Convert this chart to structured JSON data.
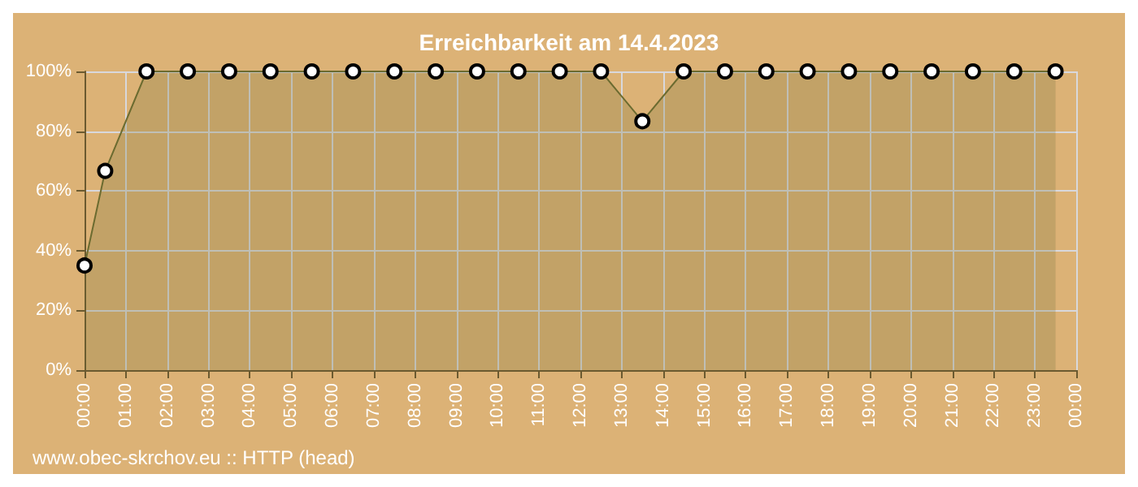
{
  "chart_data": {
    "type": "area",
    "title": "Erreichbarkeit am 14.4.2023",
    "x": [
      0,
      0.5,
      1.5,
      2.5,
      3.5,
      4.5,
      5.5,
      6.5,
      7.5,
      8.5,
      9.5,
      10.5,
      11.5,
      12.5,
      13.5,
      14.5,
      15.5,
      16.5,
      17.5,
      18.5,
      19.5,
      20.5,
      21.5,
      22.5,
      23.5
    ],
    "values": [
      35,
      66.7,
      100,
      100,
      100,
      100,
      100,
      100,
      100,
      100,
      100,
      100,
      100,
      100,
      83.3,
      100,
      100,
      100,
      100,
      100,
      100,
      100,
      100,
      100,
      100
    ],
    "color": "#6b6b30",
    "xlim": [
      0,
      24
    ],
    "xticks": [
      {
        "value": 0,
        "label": "00:00"
      },
      {
        "value": 1,
        "label": "01:00"
      },
      {
        "value": 2,
        "label": "02:00"
      },
      {
        "value": 3,
        "label": "03:00"
      },
      {
        "value": 4,
        "label": "04:00"
      },
      {
        "value": 5,
        "label": "05:00"
      },
      {
        "value": 6,
        "label": "06:00"
      },
      {
        "value": 7,
        "label": "07:00"
      },
      {
        "value": 8,
        "label": "08:00"
      },
      {
        "value": 9,
        "label": "09:00"
      },
      {
        "value": 10,
        "label": "10:00"
      },
      {
        "value": 11,
        "label": "11:00"
      },
      {
        "value": 12,
        "label": "12:00"
      },
      {
        "value": 13,
        "label": "13:00"
      },
      {
        "value": 14,
        "label": "14:00"
      },
      {
        "value": 15,
        "label": "15:00"
      },
      {
        "value": 16,
        "label": "16:00"
      },
      {
        "value": 17,
        "label": "17:00"
      },
      {
        "value": 18,
        "label": "18:00"
      },
      {
        "value": 19,
        "label": "19:00"
      },
      {
        "value": 20,
        "label": "20:00"
      },
      {
        "value": 21,
        "label": "21:00"
      },
      {
        "value": 22,
        "label": "22:00"
      },
      {
        "value": 23,
        "label": "23:00"
      },
      {
        "value": 24,
        "label": "00:00"
      }
    ],
    "ylim": [
      0,
      100
    ],
    "yticks": [
      {
        "value": 0,
        "label": "0%"
      },
      {
        "value": 20,
        "label": "20%"
      },
      {
        "value": 40,
        "label": "40%"
      },
      {
        "value": 60,
        "label": "60%"
      },
      {
        "value": 80,
        "label": "80%"
      },
      {
        "value": 100,
        "label": "100%"
      }
    ],
    "grid": true,
    "marker": "circle",
    "annotations": [
      "www.obec-skrchov.eu :: HTTP (head)"
    ]
  }
}
